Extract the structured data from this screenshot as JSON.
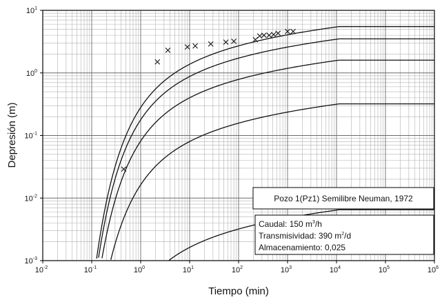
{
  "chart_data": {
    "type": "line",
    "x_scale": "log",
    "y_scale": "log",
    "xlabel": "Tiempo (min)",
    "ylabel": "Depresión (m)",
    "xlim": [
      0.01,
      1000000
    ],
    "ylim": [
      0.001,
      10
    ],
    "grid": true,
    "x_ticks": [
      {
        "base": "10",
        "exp": "-2"
      },
      {
        "base": "10",
        "exp": "-1"
      },
      {
        "base": "10",
        "exp": "0"
      },
      {
        "base": "10",
        "exp": "1"
      },
      {
        "base": "10",
        "exp": "2"
      },
      {
        "base": "10",
        "exp": "3"
      },
      {
        "base": "10",
        "exp": "4"
      },
      {
        "base": "10",
        "exp": "5"
      },
      {
        "base": "10",
        "exp": "6"
      }
    ],
    "y_ticks": [
      {
        "base": "10",
        "exp": "-3"
      },
      {
        "base": "10",
        "exp": "-2"
      },
      {
        "base": "10",
        "exp": "-1"
      },
      {
        "base": "10",
        "exp": "0"
      },
      {
        "base": "10",
        "exp": "1"
      }
    ],
    "curves": [
      {
        "plateau": 5.5
      },
      {
        "plateau": 3.5
      },
      {
        "plateau": 1.6
      },
      {
        "plateau": 0.32
      },
      {
        "plateau": 0.0065
      }
    ],
    "observations": [
      {
        "x": 0.45,
        "y": 0.029
      },
      {
        "x": 2.2,
        "y": 1.5
      },
      {
        "x": 3.6,
        "y": 2.3
      },
      {
        "x": 9,
        "y": 2.6
      },
      {
        "x": 13,
        "y": 2.7
      },
      {
        "x": 27,
        "y": 2.9
      },
      {
        "x": 55,
        "y": 3.1
      },
      {
        "x": 80,
        "y": 3.2
      },
      {
        "x": 220,
        "y": 3.4
      },
      {
        "x": 270,
        "y": 3.9
      },
      {
        "x": 330,
        "y": 4.0
      },
      {
        "x": 420,
        "y": 4.0
      },
      {
        "x": 520,
        "y": 4.1
      },
      {
        "x": 640,
        "y": 4.3
      },
      {
        "x": 1000,
        "y": 4.6
      },
      {
        "x": 1300,
        "y": 4.6
      }
    ],
    "legend": {
      "title": "Pozo 1(Pz1) Semilibre Neuman, 1972",
      "caudal_label": "Caudal: 150 m",
      "caudal_sup": "3",
      "caudal_unit": "/h",
      "transmisividad_label": "Transmisividad: 390 m",
      "transmisividad_sup": "2",
      "transmisividad_unit": "/d",
      "almacenamiento_label": "Almacenamiento: 0,025"
    }
  }
}
